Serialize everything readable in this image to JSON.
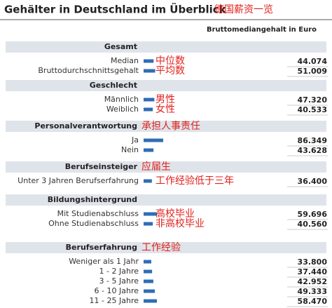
{
  "chart_data": {
    "type": "bar",
    "title": "Gehälter in Deutschland im Überblick",
    "title_note": "德国薪资一览",
    "value_axis_label": "Bruttomediangehalt in Euro",
    "color": "#2f6db5",
    "groups": [
      {
        "name": "Gesamt",
        "categories": [
          "Median",
          "Bruttodurchschnittsgehalt"
        ],
        "values": [
          44074,
          51009
        ],
        "value_labels": [
          "44.074",
          "51.009"
        ],
        "notes": [
          "中位数",
          "平均数"
        ]
      },
      {
        "name": "Geschlecht",
        "categories": [
          "Männlich",
          "Weiblich"
        ],
        "values": [
          47320,
          40533
        ],
        "value_labels": [
          "47.320",
          "40.533"
        ],
        "notes": [
          "男性",
          "女性"
        ]
      },
      {
        "name": "Personalverantwortung",
        "note": "承担人事责任",
        "categories": [
          "Ja",
          "Nein"
        ],
        "values": [
          86349,
          43628
        ],
        "value_labels": [
          "86.349",
          "43.628"
        ],
        "notes": [
          null,
          null
        ]
      },
      {
        "name": "Berufseinsteiger",
        "note": "应届生",
        "categories": [
          "Unter 3 Jahren Berufserfahrung"
        ],
        "values": [
          36400
        ],
        "value_labels": [
          "36.400"
        ],
        "notes": [
          "工作经验低于三年"
        ]
      },
      {
        "name": "Bildungshintergrund",
        "categories": [
          "Mit Studienabschluss",
          "Ohne Studienabschluss"
        ],
        "values": [
          59696,
          40560
        ],
        "value_labels": [
          "59.696",
          "40.560"
        ],
        "notes": [
          "高校毕业",
          "非高校毕业"
        ]
      },
      {
        "name": "Berufserfahrung",
        "note": "工作经验",
        "categories": [
          "Weniger als 1 Jahr",
          "1 - 2 Jahre",
          "3 - 5 Jahre",
          "6 - 10 Jahre",
          "11 - 25 Jahre"
        ],
        "values": [
          33800,
          37440,
          42952,
          49333,
          58470
        ],
        "value_labels": [
          "33.800",
          "37.440",
          "42.952",
          "49.333",
          "58.470"
        ],
        "notes": [
          null,
          null,
          null,
          null,
          null
        ]
      }
    ]
  }
}
